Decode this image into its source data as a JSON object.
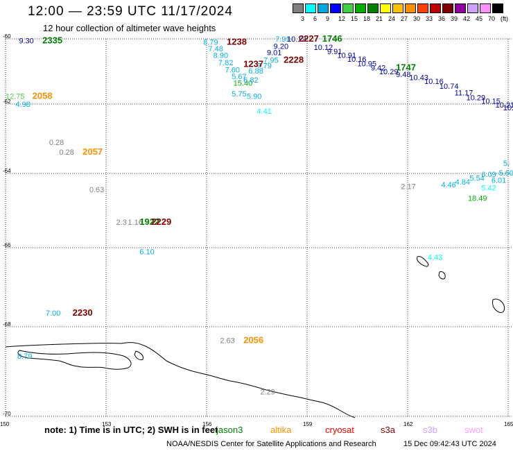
{
  "title": "12:00 — 23:59 UTC 11/17/2024",
  "subtitle": "12 hour collection of altimeter wave heights",
  "legend": {
    "labels": [
      "3",
      "6",
      "9",
      "12",
      "15",
      "18",
      "21",
      "24",
      "27",
      "30",
      "33",
      "36",
      "39",
      "42",
      "45",
      "70"
    ],
    "colors": [
      "#808080",
      "#00ffff",
      "#00a8e0",
      "#0000ff",
      "#40d040",
      "#00b000",
      "#008000",
      "#ffff00",
      "#ffc000",
      "#ff9000",
      "#ff4000",
      "#c00000",
      "#800000",
      "#9000a0",
      "#d0a0ff",
      "#ff90ff",
      "#000000"
    ],
    "unit": "(ft)"
  },
  "axes": {
    "x_ticks": [
      "150",
      "153",
      "156",
      "159",
      "162",
      "165"
    ],
    "y_ticks": [
      "-60",
      "-62",
      "-64",
      "-66",
      "-68",
      "-70"
    ]
  },
  "observations": [
    {
      "text": "9.30",
      "color": "#0000a0",
      "lon": 150.4,
      "lat": -60.05
    },
    {
      "text": "2335",
      "color": "#008000",
      "lon": 151.1,
      "lat": -60.05,
      "time": true
    },
    {
      "text": "12.75",
      "color": "#40d040",
      "lon": 150.0,
      "lat": -61.75
    },
    {
      "text": "2058",
      "color": "#ff9000",
      "lon": 150.8,
      "lat": -61.75,
      "time": true
    },
    {
      "text": "4.98",
      "color": "#00b0e0",
      "lon": 150.3,
      "lat": -62.0
    },
    {
      "text": "0.28",
      "color": "#808080",
      "lon": 151.3,
      "lat": -63.1
    },
    {
      "text": "0.28",
      "color": "#808080",
      "lon": 151.6,
      "lat": -63.38
    },
    {
      "text": "2057",
      "color": "#ff9000",
      "lon": 152.3,
      "lat": -63.38,
      "time": true
    },
    {
      "text": "0.63",
      "color": "#808080",
      "lon": 152.5,
      "lat": -64.43
    },
    {
      "text": "2.3",
      "color": "#808080",
      "lon": 153.3,
      "lat": -65.31
    },
    {
      "text": "1.16",
      "color": "#808080",
      "lon": 153.65,
      "lat": -65.31
    },
    {
      "text": "1922",
      "color": "#008000",
      "lon": 154.0,
      "lat": -65.31,
      "time": true
    },
    {
      "text": "2229",
      "color": "#800000",
      "lon": 154.35,
      "lat": -65.31,
      "time": true
    },
    {
      "text": "6.10",
      "color": "#00b0e0",
      "lon": 154.0,
      "lat": -66.1
    },
    {
      "text": "7.00",
      "color": "#00b0e0",
      "lon": 151.2,
      "lat": -67.65
    },
    {
      "text": "2230",
      "color": "#800000",
      "lon": 152.0,
      "lat": -67.65,
      "time": true
    },
    {
      "text": "8.79",
      "color": "#00b0e0",
      "lon": 150.35,
      "lat": -68.65
    },
    {
      "text": "2.63",
      "color": "#808080",
      "lon": 156.4,
      "lat": -68.3
    },
    {
      "text": "2056",
      "color": "#ff9000",
      "lon": 157.1,
      "lat": -68.3,
      "time": true
    },
    {
      "text": "2.29",
      "color": "#808080",
      "lon": 157.6,
      "lat": -69.45
    },
    {
      "text": "8.79",
      "color": "#00b0e0",
      "lon": 155.9,
      "lat": -60.1
    },
    {
      "text": "7.48",
      "color": "#00b0e0",
      "lon": 156.05,
      "lat": -60.3
    },
    {
      "text": "8.90",
      "color": "#00b0e0",
      "lon": 156.2,
      "lat": -60.5
    },
    {
      "text": "7.82",
      "color": "#00b0e0",
      "lon": 156.35,
      "lat": -60.72
    },
    {
      "text": "7.60",
      "color": "#00b0e0",
      "lon": 156.55,
      "lat": -60.95
    },
    {
      "text": "5.67",
      "color": "#00b0e0",
      "lon": 156.75,
      "lat": -61.15
    },
    {
      "text": "15.40",
      "color": "#00b000",
      "lon": 156.8,
      "lat": -61.35
    },
    {
      "text": "6.82",
      "color": "#00b0e0",
      "lon": 157.1,
      "lat": -61.25
    },
    {
      "text": "6.88",
      "color": "#00b0e0",
      "lon": 157.25,
      "lat": -60.98
    },
    {
      "text": "5.75",
      "color": "#00b0e0",
      "lon": 156.75,
      "lat": -61.68
    },
    {
      "text": "5.90",
      "color": "#00b0e0",
      "lon": 157.2,
      "lat": -61.76
    },
    {
      "text": "4.41",
      "color": "#00ffff",
      "lon": 157.5,
      "lat": -62.2
    },
    {
      "text": "1238",
      "color": "#800000",
      "lon": 156.6,
      "lat": -60.1,
      "time": true
    },
    {
      "text": "1237",
      "color": "#800000",
      "lon": 157.1,
      "lat": -60.78,
      "time": true
    },
    {
      "text": "7.79",
      "color": "#00b0e0",
      "lon": 157.5,
      "lat": -60.82
    },
    {
      "text": "7.95",
      "color": "#00b0e0",
      "lon": 157.7,
      "lat": -60.65
    },
    {
      "text": "9.01",
      "color": "#0000a0",
      "lon": 157.8,
      "lat": -60.42
    },
    {
      "text": "9.20",
      "color": "#0000a0",
      "lon": 158.0,
      "lat": -60.22
    },
    {
      "text": "7.91",
      "color": "#00b0e0",
      "lon": 158.05,
      "lat": -60.0
    },
    {
      "text": "10.12",
      "color": "#0000a0",
      "lon": 158.4,
      "lat": -60.0
    },
    {
      "text": "2228",
      "color": "#800000",
      "lon": 158.3,
      "lat": -60.65,
      "time": true
    },
    {
      "text": "2227",
      "color": "#800000",
      "lon": 158.75,
      "lat": -60.0,
      "time": true
    },
    {
      "text": "1746",
      "color": "#008000",
      "lon": 159.45,
      "lat": -60.0,
      "time": true
    },
    {
      "text": "10.12",
      "color": "#0000a0",
      "lon": 159.2,
      "lat": -60.25
    },
    {
      "text": "9.91",
      "color": "#0000a0",
      "lon": 159.6,
      "lat": -60.38
    },
    {
      "text": "10.91",
      "color": "#0000a0",
      "lon": 159.9,
      "lat": -60.5
    },
    {
      "text": "10.16",
      "color": "#0000a0",
      "lon": 160.2,
      "lat": -60.62
    },
    {
      "text": "10.95",
      "color": "#0000a0",
      "lon": 160.5,
      "lat": -60.75
    },
    {
      "text": "9.42",
      "color": "#0000a0",
      "lon": 160.9,
      "lat": -60.88
    },
    {
      "text": "10.29",
      "color": "#0000a0",
      "lon": 161.15,
      "lat": -61.0
    },
    {
      "text": "1747",
      "color": "#008000",
      "lon": 161.65,
      "lat": -60.88,
      "time": true
    },
    {
      "text": "9.48",
      "color": "#0000a0",
      "lon": 161.65,
      "lat": -61.08
    },
    {
      "text": "10.43",
      "color": "#0000a0",
      "lon": 162.05,
      "lat": -61.18
    },
    {
      "text": "10.16",
      "color": "#0000a0",
      "lon": 162.5,
      "lat": -61.3
    },
    {
      "text": "10.74",
      "color": "#0000a0",
      "lon": 162.95,
      "lat": -61.45
    },
    {
      "text": "11.17",
      "color": "#0000a0",
      "lon": 163.4,
      "lat": -61.65
    },
    {
      "text": "10.29",
      "color": "#0000a0",
      "lon": 163.75,
      "lat": -61.8
    },
    {
      "text": "10.15",
      "color": "#0000a0",
      "lon": 164.2,
      "lat": -61.9
    },
    {
      "text": "10.21",
      "color": "#0000a0",
      "lon": 164.62,
      "lat": -62.02
    },
    {
      "text": "10.",
      "color": "#0000a0",
      "lon": 164.85,
      "lat": -62.1
    },
    {
      "text": "2.17",
      "color": "#808080",
      "lon": 161.8,
      "lat": -64.35
    },
    {
      "text": "4.46",
      "color": "#00b0e0",
      "lon": 163.0,
      "lat": -64.3
    },
    {
      "text": "4.84",
      "color": "#00b0e0",
      "lon": 163.42,
      "lat": -64.22
    },
    {
      "text": "5.54",
      "color": "#00b0e0",
      "lon": 163.85,
      "lat": -64.12
    },
    {
      "text": "6.09",
      "color": "#00b0e0",
      "lon": 164.2,
      "lat": -64.02
    },
    {
      "text": "6.01",
      "color": "#00b0e0",
      "lon": 164.5,
      "lat": -64.18
    },
    {
      "text": "5.42",
      "color": "#00ffff",
      "lon": 164.2,
      "lat": -64.38
    },
    {
      "text": "5.",
      "color": "#00b0e0",
      "lon": 164.85,
      "lat": -63.7
    },
    {
      "text": "5.60",
      "color": "#00b0e0",
      "lon": 164.72,
      "lat": -63.98
    },
    {
      "text": "18.49",
      "color": "#00b000",
      "lon": 163.8,
      "lat": -64.66
    },
    {
      "text": "4.43",
      "color": "#00ffff",
      "lon": 162.6,
      "lat": -66.24
    }
  ],
  "note": {
    "text": "note: 1) Time is in UTC; 2) SWH is in feet",
    "satellites": [
      {
        "name": "jason3",
        "color": "#008000"
      },
      {
        "name": "altika",
        "color": "#ff9000"
      },
      {
        "name": "cryosat",
        "color": "#ff0000"
      },
      {
        "name": "s3a",
        "color": "#800000"
      },
      {
        "name": "s3b",
        "color": "#c8a0ff"
      },
      {
        "name": "swot",
        "color": "#ffa0ff"
      }
    ]
  },
  "credit": "NOAA/NESDIS Center for Satellite Applications and Research",
  "timestamp": "15 Dec 09:42:43 UTC 2024"
}
